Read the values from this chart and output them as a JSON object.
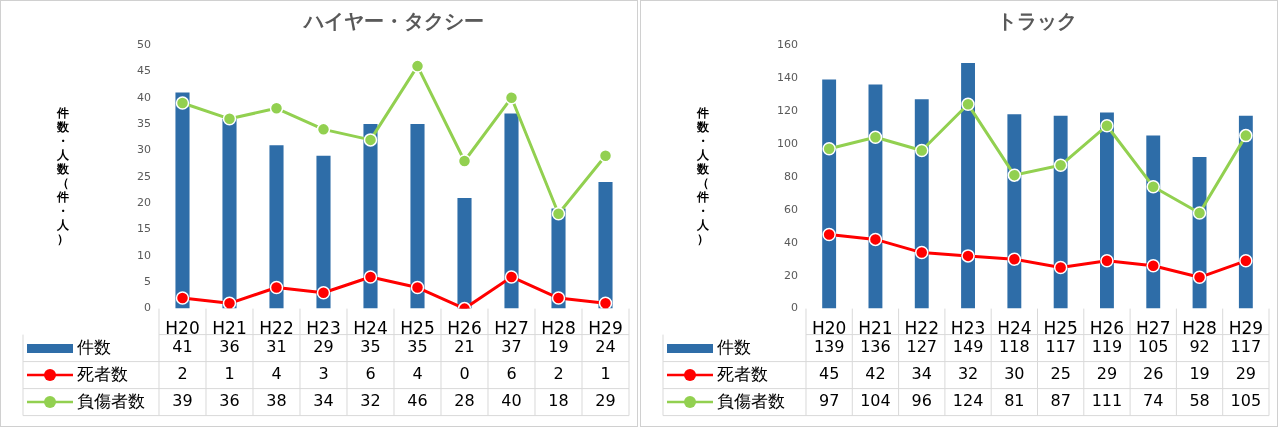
{
  "chart_data": [
    {
      "type": "bar",
      "title": "ハイヤー・タクシー",
      "ylabel": "件数・人数（件・人）",
      "categories": [
        "H20",
        "H21",
        "H22",
        "H23",
        "H24",
        "H25",
        "H26",
        "H27",
        "H28",
        "H29"
      ],
      "series": [
        {
          "name": "件数",
          "color": "#2e6da8",
          "values": [
            41,
            36,
            31,
            29,
            35,
            35,
            21,
            37,
            19,
            24
          ]
        },
        {
          "name": "死者数",
          "type": "line",
          "color": "#ff0000",
          "values": [
            2,
            1,
            4,
            3,
            6,
            4,
            0,
            6,
            2,
            1
          ]
        },
        {
          "name": "負傷者数",
          "type": "line",
          "color": "#92d050",
          "values": [
            39,
            36,
            38,
            34,
            32,
            46,
            28,
            40,
            18,
            29
          ]
        }
      ],
      "ylim": [
        0,
        50
      ],
      "yticks": [
        0,
        5,
        10,
        15,
        20,
        25,
        30,
        35,
        40,
        45,
        50
      ],
      "grid": false,
      "legend": "bottom",
      "marker": "circle",
      "data_labels": true
    },
    {
      "type": "bar",
      "title": "トラック",
      "ylabel": "件数・人数（件・人）",
      "categories": [
        "H20",
        "H21",
        "H22",
        "H23",
        "H24",
        "H25",
        "H26",
        "H27",
        "H28",
        "H29"
      ],
      "series": [
        {
          "name": "件数",
          "color": "#2e6da8",
          "values": [
            139,
            136,
            127,
            149,
            118,
            117,
            119,
            105,
            92,
            117
          ]
        },
        {
          "name": "死者数",
          "type": "line",
          "color": "#ff0000",
          "values": [
            45,
            42,
            34,
            32,
            30,
            25,
            29,
            26,
            19,
            29
          ]
        },
        {
          "name": "負傷者数",
          "type": "line",
          "color": "#92d050",
          "values": [
            97,
            104,
            96,
            124,
            81,
            87,
            111,
            74,
            58,
            105
          ]
        }
      ],
      "ylim": [
        0,
        160
      ],
      "yticks": [
        0,
        20,
        40,
        60,
        80,
        100,
        120,
        140,
        160
      ],
      "grid": false,
      "legend": "bottom",
      "marker": "circle",
      "data_labels": true
    }
  ]
}
